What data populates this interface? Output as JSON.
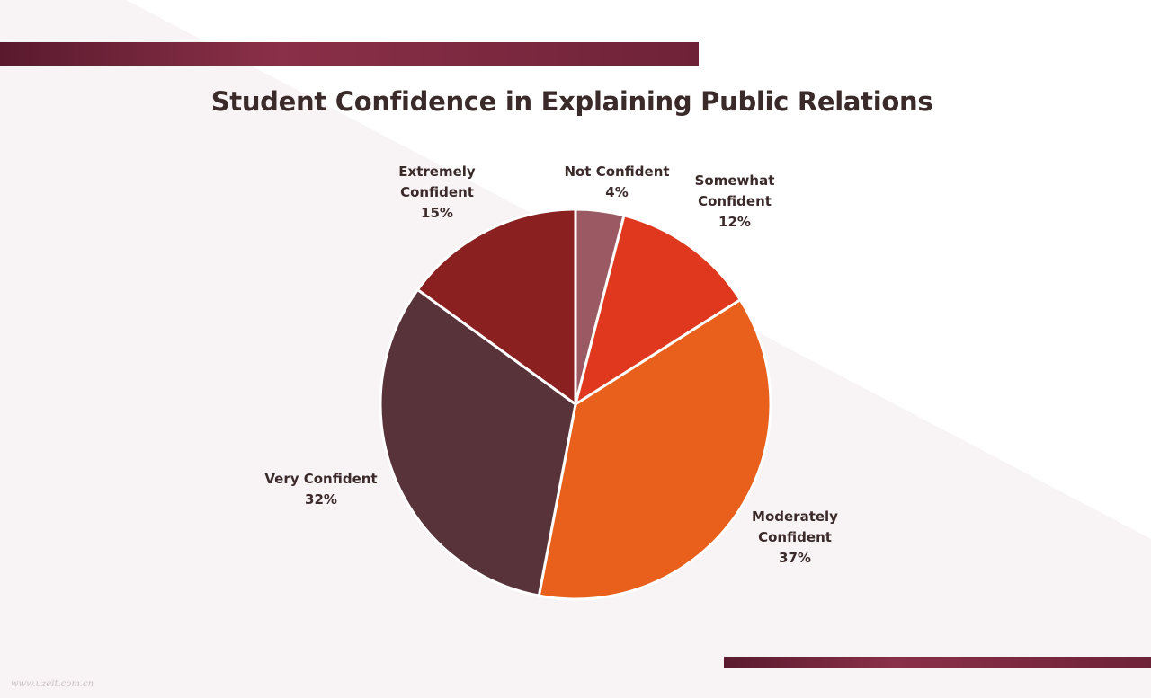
{
  "chart_data": {
    "type": "pie",
    "title": "Student Confidence in Explaining Public Relations",
    "categories": [
      "Not Confident",
      "Somewhat Confident",
      "Moderately Confident",
      "Very Confident",
      "Extremely Confident"
    ],
    "values": [
      4,
      12,
      37,
      32,
      15
    ],
    "value_labels": [
      "4%",
      "12%",
      "37%",
      "32%",
      "15%"
    ],
    "colors": [
      "#9b5a63",
      "#e0381e",
      "#e8601c",
      "#58333a",
      "#8b2020"
    ]
  },
  "watermark": "www.uzeit.com.cn"
}
